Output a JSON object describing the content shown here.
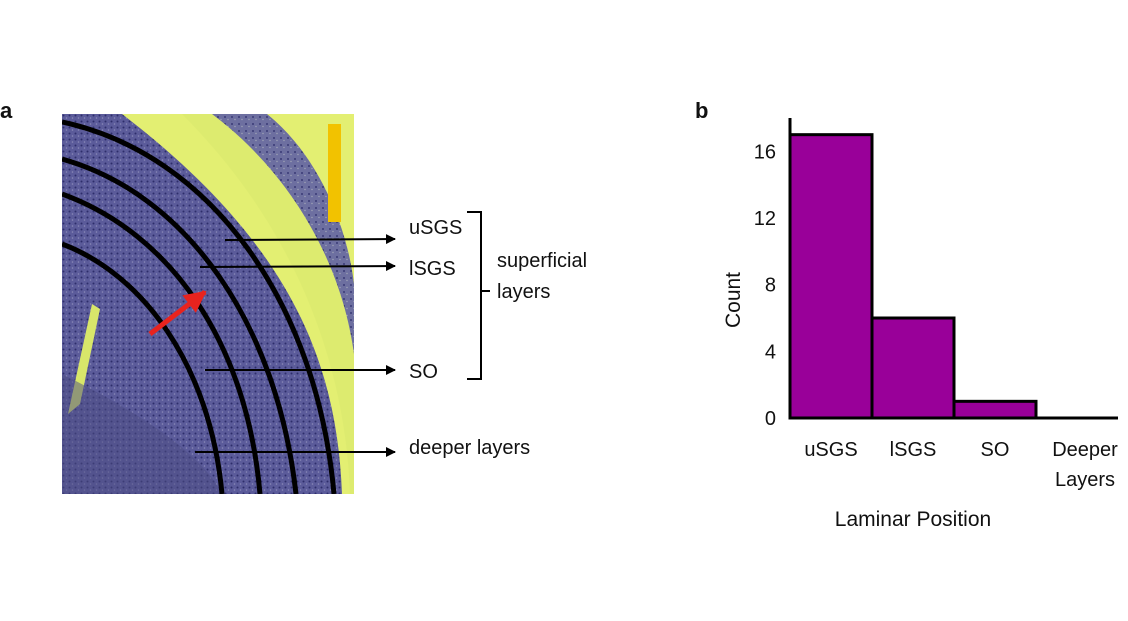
{
  "panel_a": {
    "label": "a",
    "layer_labels": {
      "usgs": "uSGS",
      "lsgs": "lSGS",
      "so": "SO",
      "deeper": "deeper layers"
    },
    "bracket_label_line1": "superficial",
    "bracket_label_line2": "layers",
    "colors": {
      "tissue": "#4a4a8a",
      "background": "#e6f07a",
      "scale_bar": "#f2c200",
      "arrow": "#e8231e"
    }
  },
  "panel_b": {
    "label": "b"
  },
  "chart_data": {
    "type": "bar",
    "categories": [
      "uSGS",
      "lSGS",
      "SO",
      "Deeper Layers"
    ],
    "category_labels": [
      [
        "uSGS"
      ],
      [
        "lSGS"
      ],
      [
        "SO"
      ],
      [
        "Deeper",
        "Layers"
      ]
    ],
    "values": [
      17,
      6,
      1,
      0
    ],
    "xlabel": "Laminar Position",
    "ylabel": "Count",
    "yticks": [
      0,
      4,
      8,
      12,
      16
    ],
    "ylim": [
      0,
      18
    ],
    "bar_color": "#990099",
    "grid": false
  }
}
